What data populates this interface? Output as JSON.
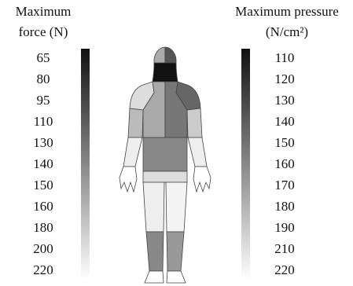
{
  "left_scale": {
    "title_lines": [
      "Maximum",
      "force (N)"
    ],
    "values": [
      65,
      80,
      95,
      110,
      130,
      140,
      150,
      160,
      180,
      200,
      220
    ]
  },
  "right_scale": {
    "title_lines": [
      "Maximum pressure",
      "(N/cm²)"
    ],
    "values": [
      110,
      120,
      130,
      140,
      150,
      160,
      170,
      180,
      190,
      210,
      220
    ]
  }
}
